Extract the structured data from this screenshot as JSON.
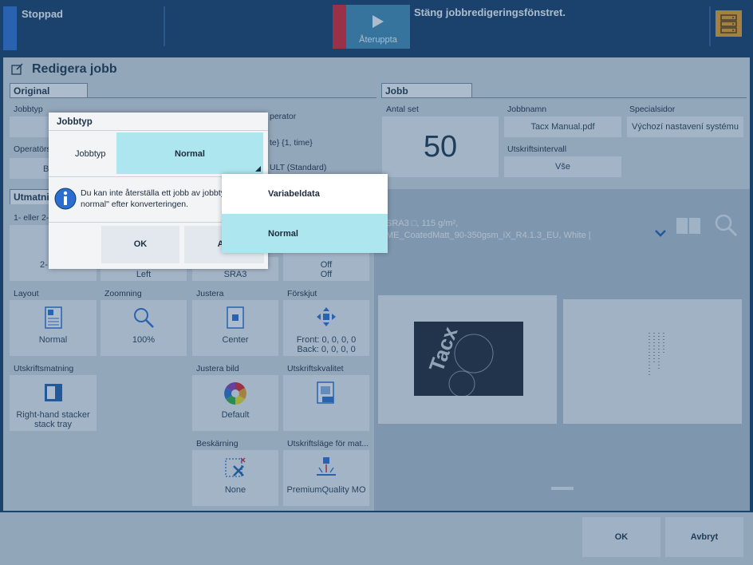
{
  "topbar": {
    "status": "Stoppad",
    "message": "Stäng jobbredigeringsfönstret.",
    "resume_label": "Återuppta"
  },
  "window": {
    "title": "Redigera jobb"
  },
  "original": {
    "tab": "Original",
    "jobtype_label": "Jobbtyp",
    "operator_label": "Operatörs",
    "operator_value": "Be",
    "operator2_label": "perator",
    "operator2_value": "te} {1, time}",
    "standard_value": "ULT (Standard)"
  },
  "jobb": {
    "tab": "Jobb",
    "sets_label": "Antal set",
    "sets_value": "50",
    "name_label": "Jobbnamn",
    "name_value": "Tacx Manual.pdf",
    "special_label": "Specialsidor",
    "special_value": "Výchozí nastavení systému",
    "interval_label": "Utskriftsintervall",
    "interval_value": "Vše"
  },
  "output": {
    "tab": "Utmatni",
    "sided_label": "1- eller 2-",
    "sided_value": "2-",
    "left_value": "Left",
    "sra3_value": "SRA3",
    "off1": "Off",
    "off2": "Off",
    "layout_label": "Layout",
    "layout_value": "Normal",
    "zoom_label": "Zoomning",
    "zoom_value": "100%",
    "adjust_label": "Justera",
    "adjust_value": "Center",
    "shift_label": "Förskjut",
    "shift_front": "Front: 0, 0, 0, 0",
    "shift_back": "Back: 0, 0, 0, 0",
    "feed_label": "Utskriftsmatning",
    "feed_value_1": "Right-hand stacker",
    "feed_value_2": "stack tray",
    "adjimg_label": "Justera bild",
    "adjimg_value": "Default",
    "quality_label": "Utskriftskvalitet",
    "trim_label": "Beskärning",
    "trim_value": "None",
    "mode_label": "Utskriftsläge för mat...",
    "mode_value": "PremiumQuality MO"
  },
  "preview": {
    "media_line1": "SRA3 □, 115 g/m²,",
    "media_line2": "ME_CoatedMatt_90-350gsm_iX_R4.1.3_EU, White |"
  },
  "dialog": {
    "title": "Jobbtyp",
    "field_label": "Jobbtyp",
    "selected": "Normal",
    "info_line1": "Du kan inte återställa ett jobb av jobbty",
    "info_line2": "normal\" efter konverteringen.",
    "ok": "OK",
    "cancel": "Avl"
  },
  "dropdown": {
    "options": [
      "Variabeldata",
      "Normal"
    ]
  },
  "bottom": {
    "ok": "OK",
    "cancel": "Avbryt"
  },
  "colors": {
    "accent_blue": "#2a6fd0",
    "stop_red": "#e0202a",
    "resume_teal": "#3f8ab4",
    "selected_cyan": "#aee6ef",
    "folder_orange": "#f0a020"
  }
}
